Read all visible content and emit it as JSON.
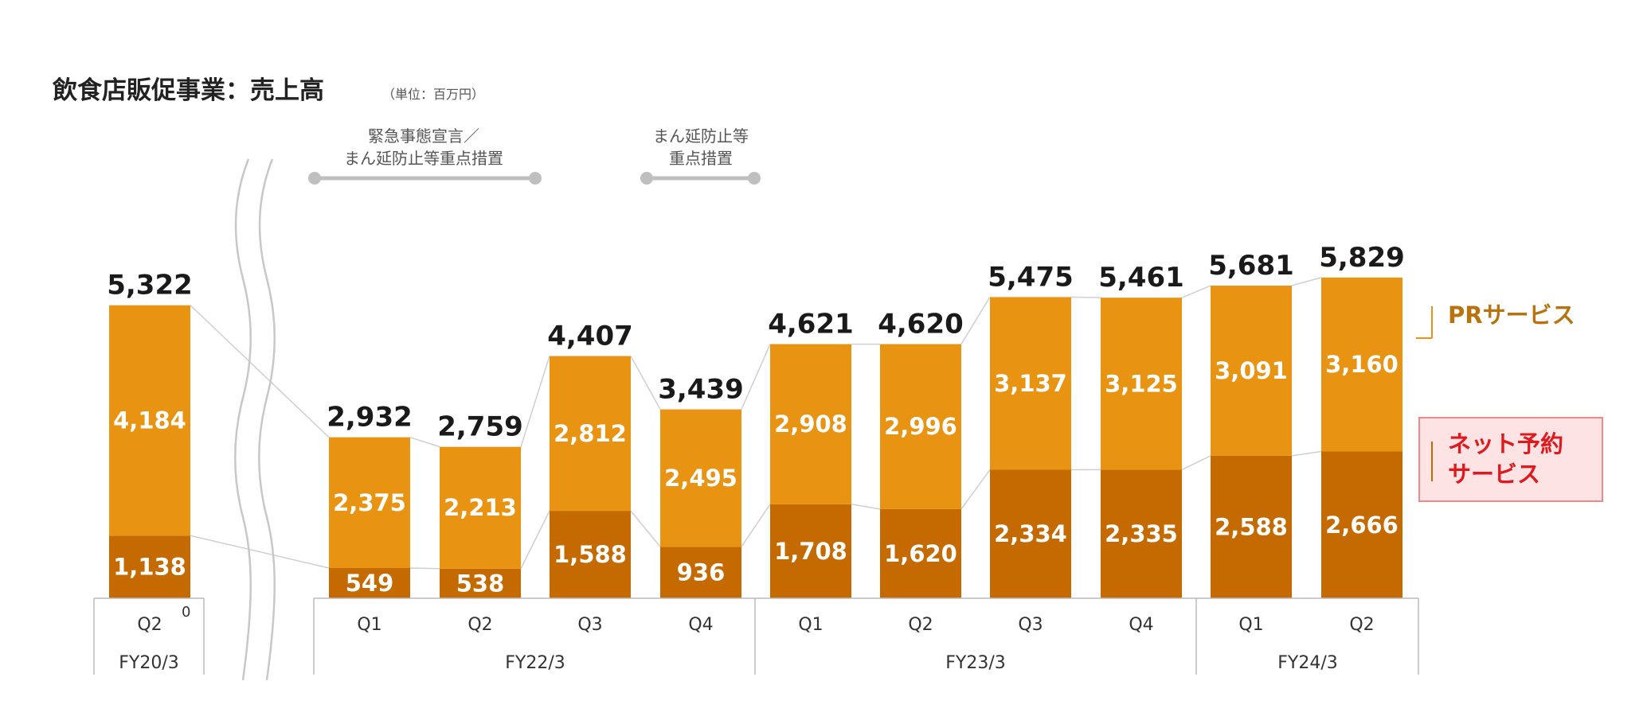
{
  "title": "飲食店販促事業：売上高",
  "unit": "（単位：百万円）",
  "colors": {
    "pr": "#E89412",
    "net": "#C46A00",
    "legend_pr_text": "#B8730F",
    "legend_net_text": "#E0191E",
    "legend_net_bg": "#FDE3E3",
    "legend_net_border": "#F08A8A",
    "connector": "#CFCFCF",
    "axis": "#BBBBBB"
  },
  "annotations": [
    {
      "lines": [
        "緊急事態宣言／",
        "まん延防止等重点措置"
      ]
    },
    {
      "lines": [
        "まん延防止等",
        "重点措置"
      ]
    }
  ],
  "legend": {
    "pr": "PRサービス",
    "net_line1": "ネット予約",
    "net_line2": "サービス"
  },
  "zero_label": "0",
  "chart_data": {
    "type": "bar",
    "stacked": true,
    "title": "飲食店販促事業：売上高",
    "unit": "（単位：百万円）",
    "categories": [
      "Q2",
      "Q1",
      "Q2",
      "Q3",
      "Q4",
      "Q1",
      "Q2",
      "Q3",
      "Q4",
      "Q1",
      "Q2"
    ],
    "fiscal_years": [
      {
        "label": "FY20/3",
        "span": 1
      },
      {
        "label": "FY22/3",
        "span": 4
      },
      {
        "label": "FY23/3",
        "span": 4
      },
      {
        "label": "FY24/3",
        "span": 2
      }
    ],
    "series": [
      {
        "name": "ネット予約サービス",
        "key": "net",
        "values": [
          1138,
          549,
          538,
          1588,
          936,
          1708,
          1620,
          2334,
          2335,
          2588,
          2666
        ]
      },
      {
        "name": "PRサービス",
        "key": "pr",
        "values": [
          4184,
          2375,
          2213,
          2812,
          2495,
          2908,
          2996,
          3137,
          3125,
          3091,
          3160
        ]
      }
    ],
    "totals": [
      5322,
      2932,
      2759,
      4407,
      3439,
      4621,
      4620,
      5475,
      5461,
      5681,
      5829
    ],
    "value_labels": {
      "net": [
        "1,138",
        "549",
        "538",
        "1,588",
        "936",
        "1,708",
        "1,620",
        "2,334",
        "2,335",
        "2,588",
        "2,666"
      ],
      "pr": [
        "4,184",
        "2,375",
        "2,213",
        "2,812",
        "2,495",
        "2,908",
        "2,996",
        "3,137",
        "3,125",
        "3,091",
        "3,160"
      ],
      "total": [
        "5,322",
        "2,932",
        "2,759",
        "4,407",
        "3,439",
        "4,621",
        "4,620",
        "5,475",
        "5,461",
        "5,681",
        "5,829"
      ]
    },
    "ylim": [
      0,
      6000
    ],
    "grid": false,
    "legend_position": "right"
  }
}
